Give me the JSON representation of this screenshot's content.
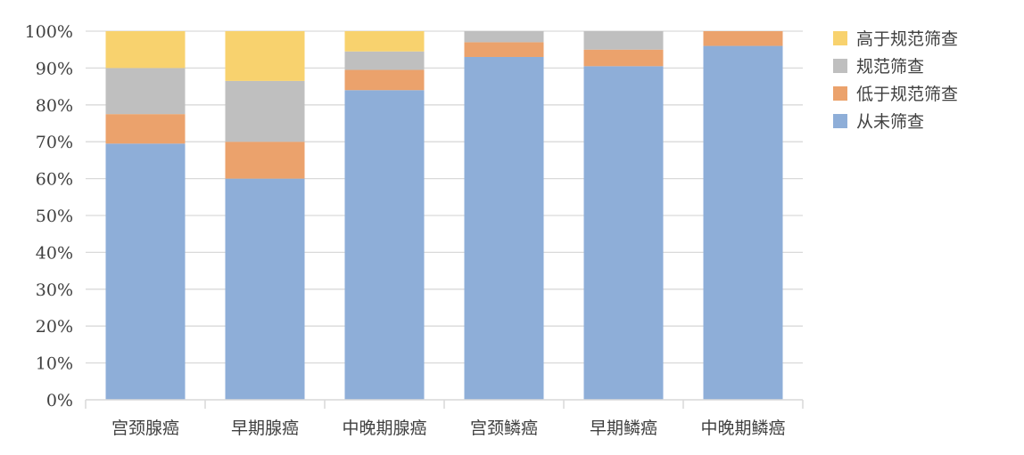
{
  "chart_data": {
    "type": "bar",
    "stacked": true,
    "normalized": true,
    "categories": [
      "宫颈腺癌",
      "早期腺癌",
      "中晚期腺癌",
      "宫颈鳞癌",
      "早期鳞癌",
      "中晚期鳞癌"
    ],
    "series": [
      {
        "name": "从未筛查",
        "color": "#8EAED8",
        "values": [
          69.5,
          60.0,
          84.0,
          93.0,
          90.5,
          96.0
        ]
      },
      {
        "name": "低于规范筛查",
        "color": "#EBA26C",
        "values": [
          8.0,
          10.0,
          5.5,
          4.0,
          4.5,
          4.0
        ]
      },
      {
        "name": "规范筛查",
        "color": "#BFBFBF",
        "values": [
          12.5,
          16.5,
          5.0,
          3.0,
          5.0,
          0.0
        ]
      },
      {
        "name": "高于规范筛查",
        "color": "#F8D26E",
        "values": [
          10.0,
          13.5,
          5.5,
          0.0,
          0.0,
          0.0
        ]
      }
    ],
    "legend_order": [
      "高于规范筛查",
      "规范筛查",
      "低于规范筛查",
      "从未筛查"
    ],
    "y_ticks": [
      "0%",
      "10%",
      "20%",
      "30%",
      "40%",
      "50%",
      "60%",
      "70%",
      "80%",
      "90%",
      "100%"
    ],
    "ylim": [
      0,
      100
    ],
    "grid": true,
    "legend_position": "top-right",
    "title": "",
    "xlabel": "",
    "ylabel": ""
  }
}
